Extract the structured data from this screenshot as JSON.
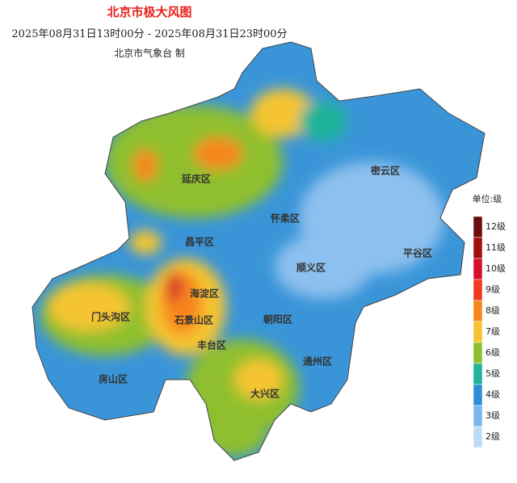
{
  "header": {
    "title": "北京市极大风图",
    "period": "2025年08月31日13时00分 - 2025年08月31日23时00分",
    "agency": "北京市气象台 制"
  },
  "districts": [
    {
      "label": "延庆区"
    },
    {
      "label": "怀柔区"
    },
    {
      "label": "密云区"
    },
    {
      "label": "昌平区"
    },
    {
      "label": "平谷区"
    },
    {
      "label": "顺义区"
    },
    {
      "label": "海淀区"
    },
    {
      "label": "门头沟区"
    },
    {
      "label": "石景山区"
    },
    {
      "label": "朝阳区"
    },
    {
      "label": "丰台区"
    },
    {
      "label": "通州区"
    },
    {
      "label": "房山区"
    },
    {
      "label": "大兴区"
    }
  ],
  "legend": {
    "title": "单位:级",
    "levels": [
      {
        "label": "12级",
        "color": "#6b0e0e"
      },
      {
        "label": "11级",
        "color": "#a00e0e"
      },
      {
        "label": "10级",
        "color": "#d4102a"
      },
      {
        "label": "9级",
        "color": "#ef3a1f"
      },
      {
        "label": "8级",
        "color": "#f7861d"
      },
      {
        "label": "7级",
        "color": "#f5c431"
      },
      {
        "label": "6级",
        "color": "#8fbf2e"
      },
      {
        "label": "5级",
        "color": "#1fb39a"
      },
      {
        "label": "4级",
        "color": "#2e8fd6"
      },
      {
        "label": "3级",
        "color": "#79b6ec"
      },
      {
        "label": "2级",
        "color": "#bcdcf6"
      }
    ]
  }
}
